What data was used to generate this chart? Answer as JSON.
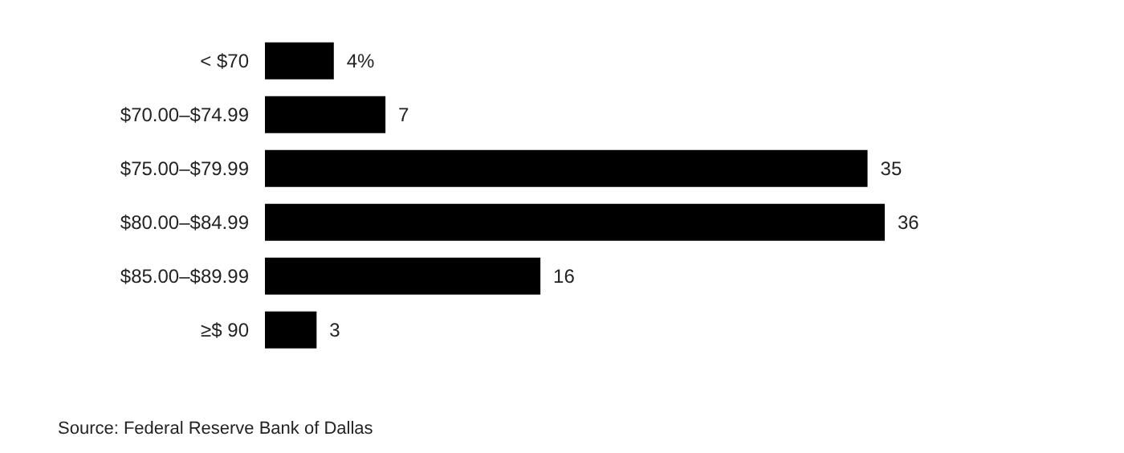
{
  "chart_data": {
    "type": "bar",
    "orientation": "horizontal",
    "categories": [
      "< $70",
      "$70.00–$74.99",
      "$75.00–$79.99",
      "$80.00–$84.99",
      "$85.00–$89.99",
      "≥$ 90"
    ],
    "values": [
      4,
      7,
      35,
      36,
      16,
      3
    ],
    "value_labels": [
      "4%",
      "7",
      "35",
      "36",
      "16",
      "3"
    ],
    "color": "#000000",
    "tick_labels": "y",
    "annotations": [
      "Source: Federal Reserve Bank of Dallas"
    ]
  }
}
